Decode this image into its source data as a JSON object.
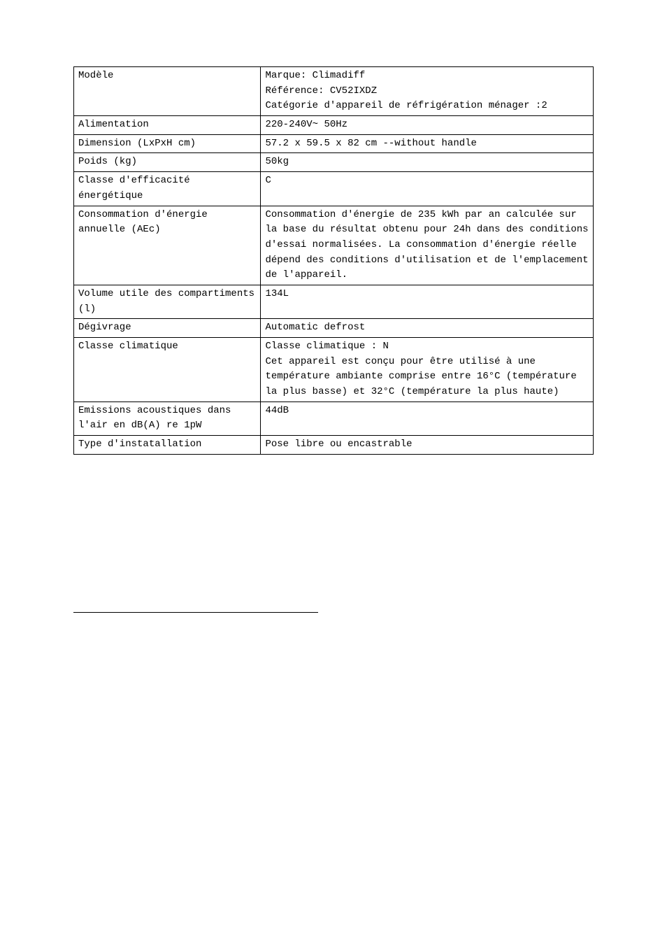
{
  "table": {
    "rows": [
      {
        "label": "Modèle",
        "value": "Marque: Climadiff\nRéférence: CV52IXDZ\nCatégorie d'appareil de réfrigération ménager :2"
      },
      {
        "label": "Alimentation",
        "value": "220-240V~ 50Hz"
      },
      {
        "label": "Dimension (LxPxH cm)",
        "value": "57.2 x 59.5 x 82 cm --without handle"
      },
      {
        "label": "Poids (kg)",
        "value": "50kg"
      },
      {
        "label": "Classe d'efficacité énergétique",
        "value": "C"
      },
      {
        "label": "Consommation d'énergie annuelle (AEc)",
        "value": "Consommation d'énergie de 235 kWh par an calculée sur la base du résultat obtenu pour 24h dans des conditions d'essai normalisées. La consommation d'énergie réelle dépend des conditions d'utilisation et de l'emplacement de l'appareil."
      },
      {
        "label": "Volume utile des compartiments (l)",
        "value": "134L"
      },
      {
        "label": "Dégivrage",
        "value": "Automatic defrost"
      },
      {
        "label": "Classe climatique",
        "value": "Classe climatique : N\nCet appareil est conçu pour être utilisé à une température ambiante comprise entre 16°C (température la plus basse) et 32°C (température la plus haute)"
      },
      {
        "label": "Emissions acoustiques dans l'air en dB(A) re 1pW",
        "value": "44dB"
      },
      {
        "label": "Type d'instatallation",
        "value": "Pose libre ou encastrable"
      }
    ]
  },
  "style": {
    "font_family": "SimSun, NSimSun, Courier New, monospace",
    "font_size_pt": 10,
    "border_color": "#000000",
    "background_color": "#ffffff",
    "text_color": "#000000",
    "col1_width_pct": 36,
    "col2_width_pct": 64
  }
}
